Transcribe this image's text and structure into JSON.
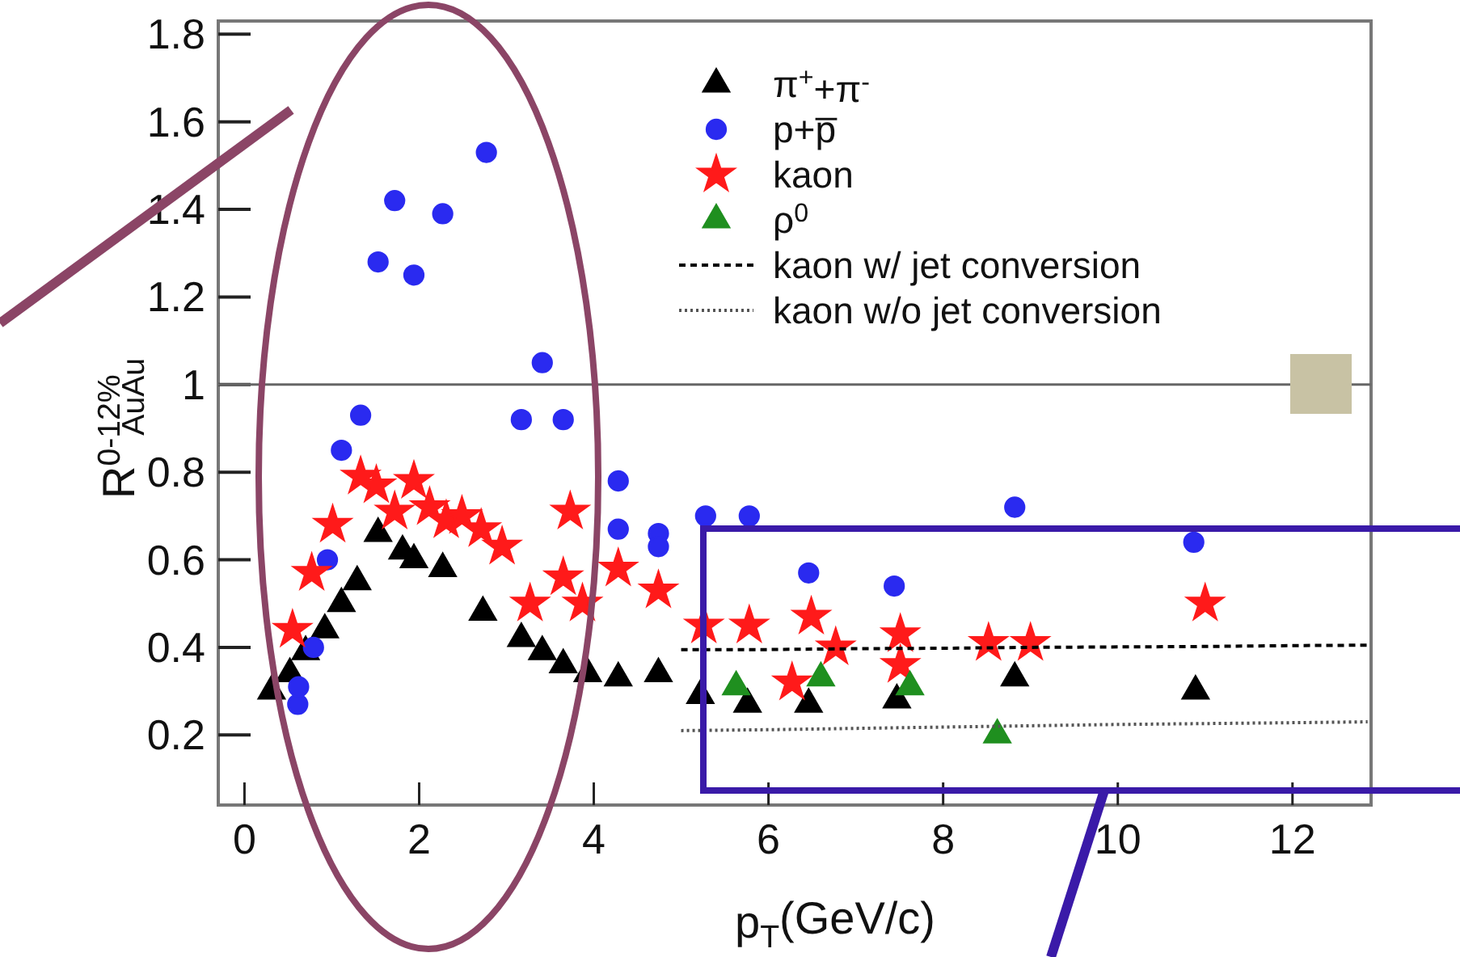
{
  "chart_data": {
    "type": "scatter",
    "xlabel": "p$_{T}$(GeV/c)",
    "ylabel": "R$^{0-12%}$$_{AuAu}$",
    "xlim": [
      -0.3,
      12.9
    ],
    "ylim": [
      0.04,
      1.83
    ],
    "xticks": [
      0,
      2,
      4,
      6,
      8,
      10,
      12
    ],
    "yticks": [
      0.2,
      0.4,
      0.6,
      0.8,
      {
        "value": 1,
        "label": "1"
      },
      1.2,
      1.4,
      1.6,
      1.8
    ],
    "legend": "top right",
    "grid": false,
    "ref_lines": [
      {
        "axis": "y",
        "value": 1,
        "color": "#666666"
      }
    ],
    "series": [
      {
        "name": "π$^{+}$+π$^{-}$",
        "color": "#000000",
        "marker": "triangle",
        "x": [
          0.31,
          0.52,
          0.7,
          0.92,
          1.11,
          1.29,
          1.53,
          1.81,
          1.94,
          2.27,
          2.73,
          3.17,
          3.41,
          3.65,
          3.93,
          4.28,
          4.74,
          5.22,
          5.76,
          6.46,
          7.47,
          8.82,
          10.89
        ],
        "values": [
          0.3,
          0.34,
          0.39,
          0.44,
          0.5,
          0.55,
          0.66,
          0.62,
          0.6,
          0.58,
          0.48,
          0.42,
          0.39,
          0.36,
          0.34,
          0.33,
          0.34,
          0.29,
          0.27,
          0.27,
          0.28,
          0.33,
          0.3
        ]
      },
      {
        "name": "p+p̅",
        "color": "#2a2af0",
        "marker": "circle",
        "x": [
          0.61,
          0.62,
          0.79,
          0.95,
          1.11,
          1.33,
          1.53,
          1.72,
          1.94,
          2.27,
          2.77,
          3.17,
          3.41,
          3.65,
          4.28,
          4.28,
          4.74,
          4.74,
          5.28,
          5.78,
          6.46,
          7.44,
          8.82,
          10.87
        ],
        "values": [
          0.27,
          0.31,
          0.4,
          0.6,
          0.85,
          0.93,
          1.28,
          1.42,
          1.25,
          1.39,
          1.53,
          0.92,
          1.05,
          0.92,
          0.78,
          0.67,
          0.66,
          0.63,
          0.7,
          0.7,
          0.57,
          0.54,
          0.72,
          0.64
        ]
      },
      {
        "name": "kaon",
        "color": "#ff1a1a",
        "marker": "star",
        "x": [
          0.55,
          0.77,
          1.01,
          1.33,
          1.51,
          1.72,
          1.94,
          2.12,
          2.31,
          2.49,
          2.71,
          2.95,
          3.27,
          3.65,
          3.73,
          3.87,
          4.28,
          4.74,
          5.26,
          5.78,
          6.27,
          6.49,
          6.77,
          7.51,
          7.51,
          8.52,
          9.0,
          11.0
        ],
        "values": [
          0.44,
          0.57,
          0.68,
          0.79,
          0.77,
          0.71,
          0.78,
          0.72,
          0.69,
          0.7,
          0.67,
          0.63,
          0.5,
          0.56,
          0.71,
          0.5,
          0.58,
          0.53,
          0.45,
          0.45,
          0.32,
          0.47,
          0.4,
          0.43,
          0.36,
          0.41,
          0.41,
          0.5
        ]
      },
      {
        "name": "ρ$^{0}$",
        "color": "#1f8f1f",
        "marker": "triangle",
        "x": [
          5.63,
          6.6,
          7.62,
          8.62
        ],
        "values": [
          0.31,
          0.33,
          0.31,
          0.2
        ]
      },
      {
        "name": "kaon w/ jet conversion",
        "type": "line",
        "color": "#000000",
        "line_style": "dashed",
        "x": [
          5.0,
          6,
          7,
          8,
          9,
          10,
          11,
          12,
          12.86
        ],
        "values": [
          0.395,
          0.395,
          0.397,
          0.398,
          0.4,
          0.401,
          0.402,
          0.404,
          0.405
        ]
      },
      {
        "name": "kaon w/o jet conversion",
        "type": "line",
        "color": "#555555",
        "line_style": "dotted",
        "x": [
          5.0,
          6,
          7,
          8,
          9,
          10,
          11,
          12,
          12.86
        ],
        "values": [
          0.21,
          0.212,
          0.215,
          0.218,
          0.221,
          0.224,
          0.226,
          0.228,
          0.23
        ]
      }
    ]
  }
}
